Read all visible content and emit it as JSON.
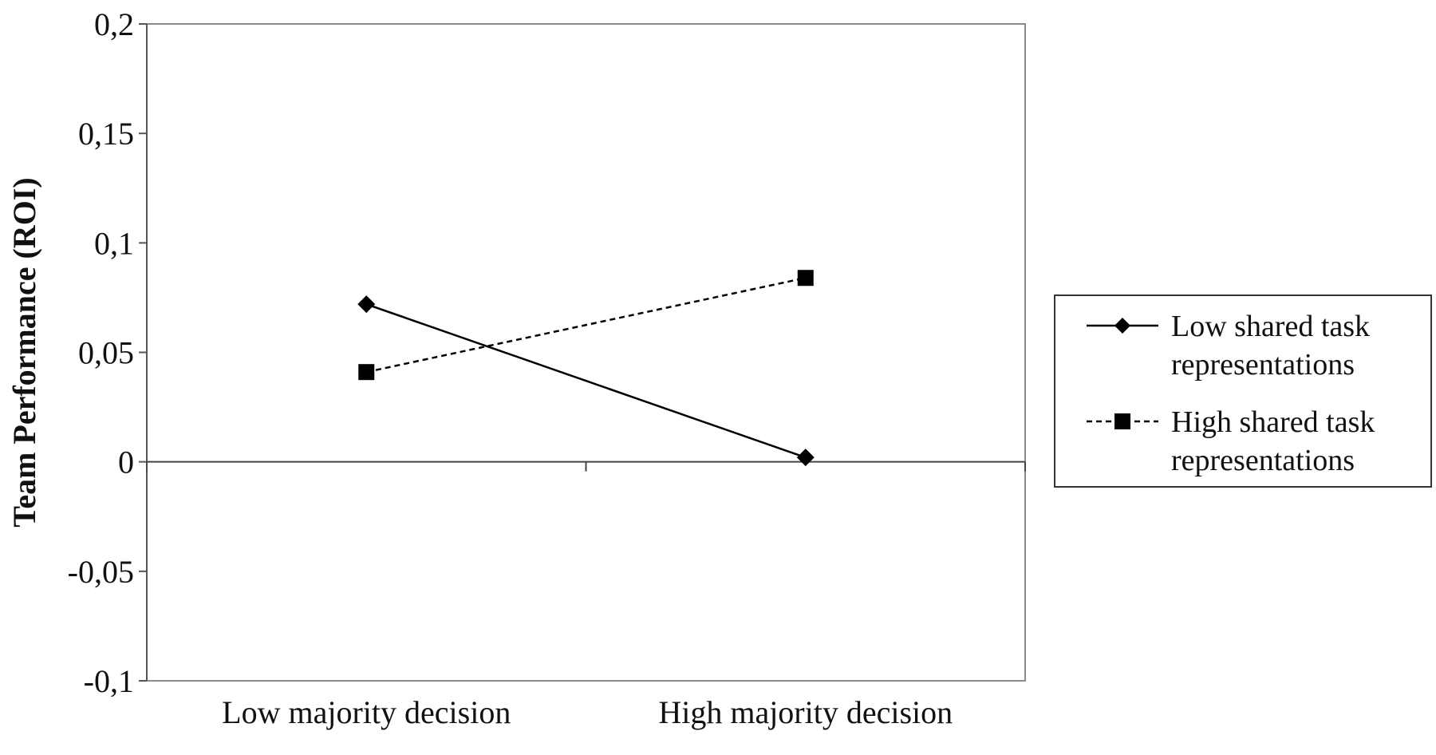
{
  "chart_data": {
    "type": "line",
    "title": "",
    "xlabel": "",
    "ylabel": "Team Performance (ROI)",
    "categories": [
      "Low majority decision",
      "High majority decision"
    ],
    "ylim": [
      -0.1,
      0.2
    ],
    "yticks": [
      -0.1,
      -0.05,
      0,
      0.05,
      0.1,
      0.15,
      0.2
    ],
    "ytick_labels": [
      "-0,1",
      "-0,05",
      "0",
      "0,05",
      "0,1",
      "0,15",
      "0,2"
    ],
    "grid": false,
    "legend_position": "right",
    "series": [
      {
        "name": "Low shared task representations",
        "name_lines": [
          "Low shared task",
          "representations"
        ],
        "values": [
          0.072,
          0.002
        ],
        "marker": "diamond",
        "line_style": "solid",
        "color": "#000000"
      },
      {
        "name": "High shared task representations",
        "name_lines": [
          "High shared task",
          "representations"
        ],
        "values": [
          0.041,
          0.084
        ],
        "marker": "square",
        "line_style": "dashed",
        "color": "#000000"
      }
    ]
  }
}
